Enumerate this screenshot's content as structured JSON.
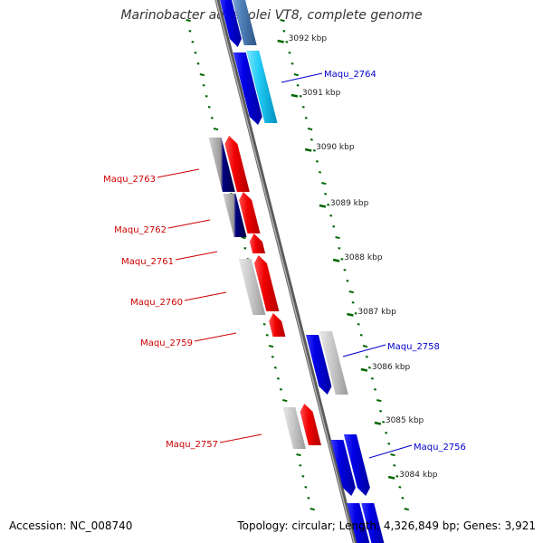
{
  "title": "Marinobacter aquaeolei VT8, complete genome",
  "footer": {
    "accession": "Accession: NC_008740",
    "summary": "Topology: circular; Length: 4,326,849 bp; Genes: 3,921"
  },
  "colors": {
    "forward_label": "#0000cc",
    "reverse_label": "#cc0000",
    "tick": "#006600",
    "backbone": "#888888"
  },
  "kbp_ticks": [
    "3092 kbp",
    "3091 kbp",
    "3090 kbp",
    "3089 kbp",
    "3088 kbp",
    "3087 kbp",
    "3086 kbp",
    "3085 kbp",
    "3084 kbp"
  ],
  "gene_labels": [
    {
      "name": "Maqu_2764",
      "strand": "forward"
    },
    {
      "name": "Maqu_2763",
      "strand": "reverse"
    },
    {
      "name": "Maqu_2762",
      "strand": "reverse"
    },
    {
      "name": "Maqu_2761",
      "strand": "reverse"
    },
    {
      "name": "Maqu_2760",
      "strand": "reverse"
    },
    {
      "name": "Maqu_2759",
      "strand": "reverse"
    },
    {
      "name": "Maqu_2758",
      "strand": "forward"
    },
    {
      "name": "Maqu_2757",
      "strand": "reverse"
    },
    {
      "name": "Maqu_2756",
      "strand": "forward"
    }
  ]
}
